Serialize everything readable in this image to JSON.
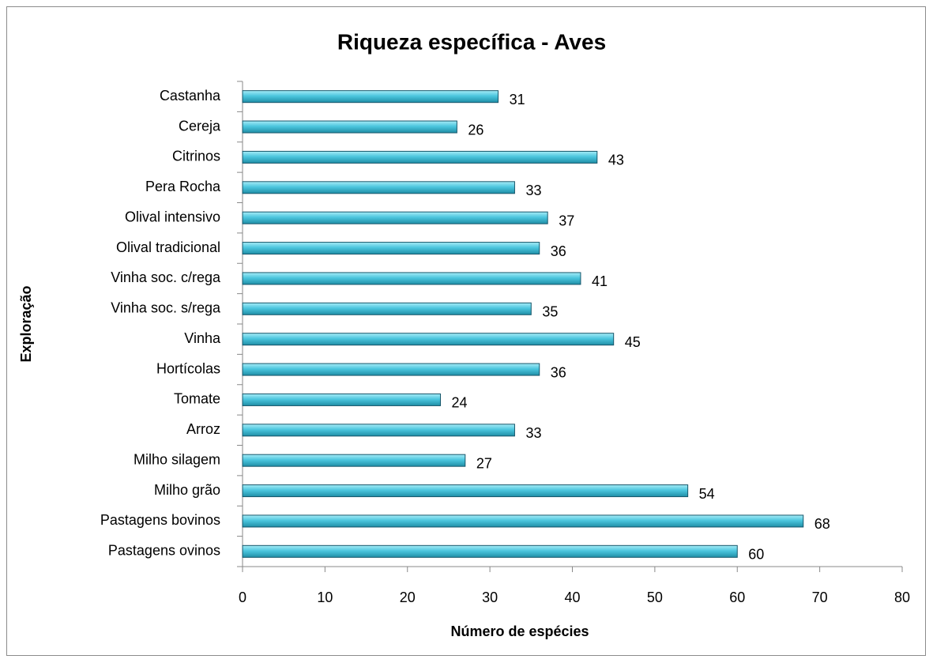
{
  "chart_data": {
    "type": "bar",
    "orientation": "horizontal",
    "title": "Riqueza específica - Aves",
    "x_label": "Número de espécies",
    "y_label": "Exploração",
    "categories": [
      "Castanha",
      "Cereja",
      "Citrinos",
      "Pera Rocha",
      "Olival intensivo",
      "Olival tradicional",
      "Vinha soc. c/rega",
      "Vinha soc. s/rega",
      "Vinha",
      "Hortícolas",
      "Tomate",
      "Arroz",
      "Milho silagem",
      "Milho grão",
      "Pastagens bovinos",
      "Pastagens ovinos"
    ],
    "values": [
      31,
      26,
      43,
      33,
      37,
      36,
      41,
      35,
      45,
      36,
      24,
      33,
      27,
      54,
      68,
      60
    ],
    "color": "#3fc0da",
    "xlim": [
      0,
      80
    ],
    "xticks": [
      0,
      10,
      20,
      30,
      40,
      50,
      60,
      70,
      80
    ],
    "grid": false
  }
}
